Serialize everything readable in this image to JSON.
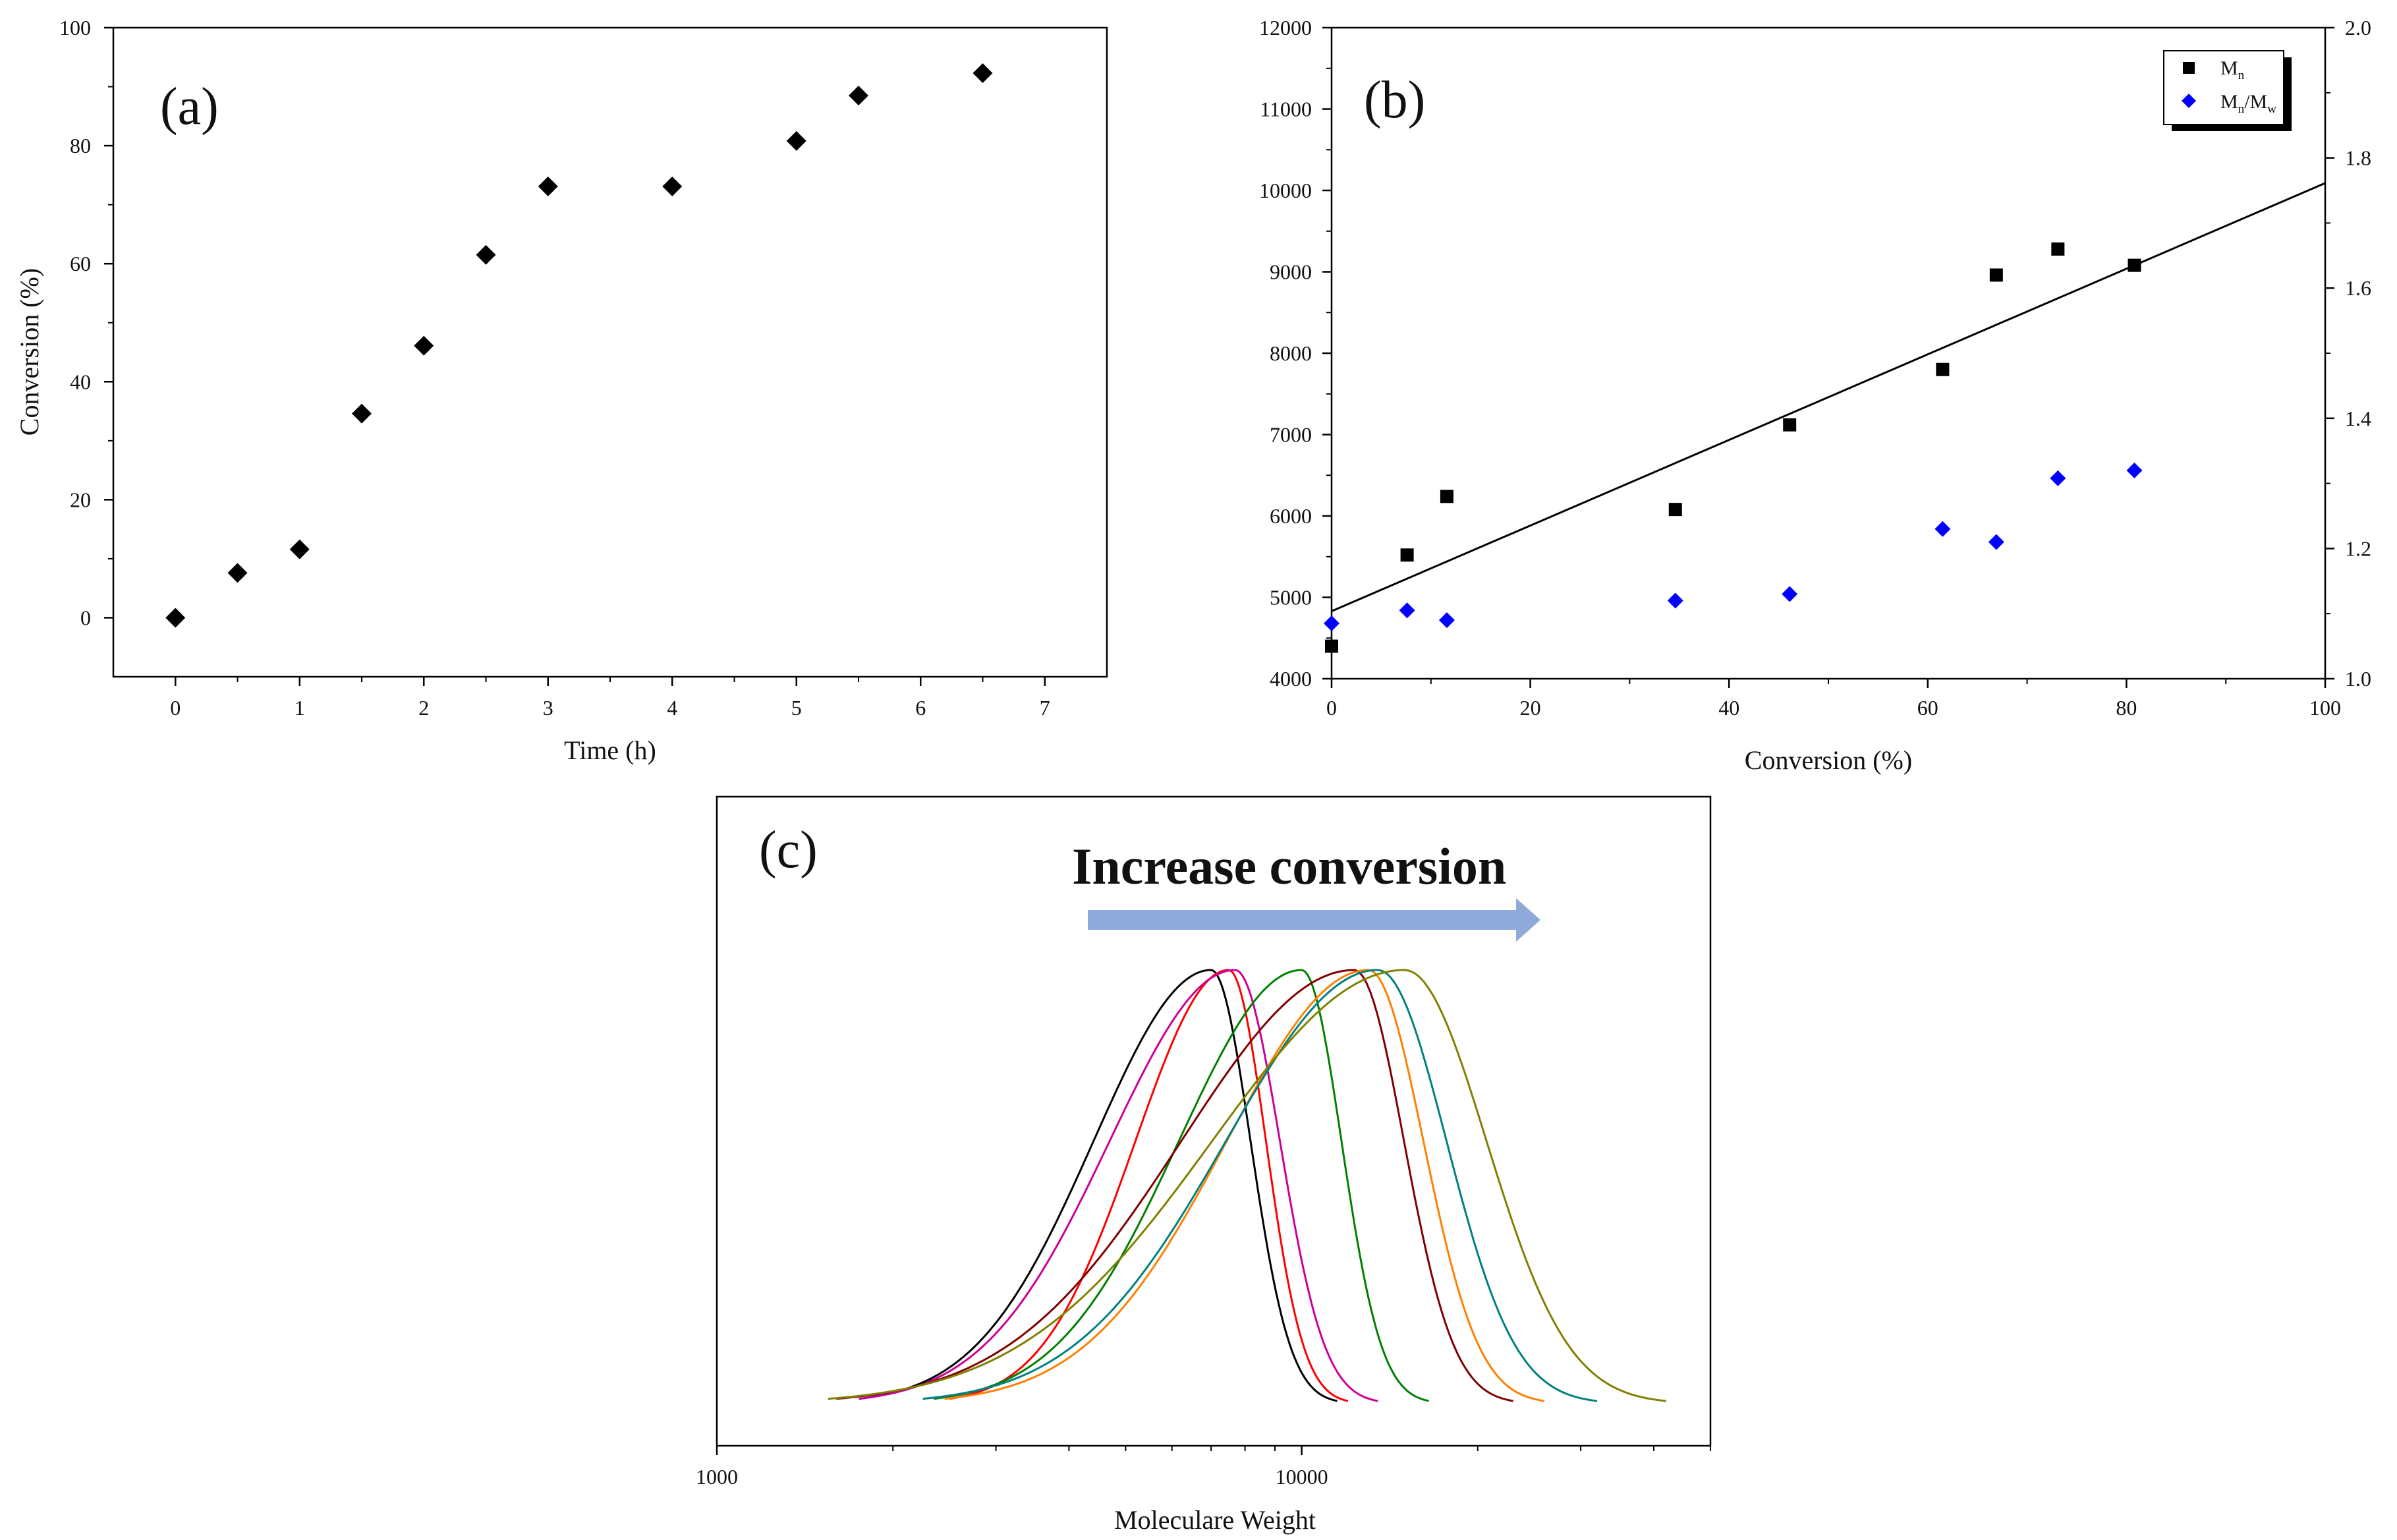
{
  "chart_data": [
    {
      "id": "a",
      "type": "scatter",
      "panel_label": "(a)",
      "xlabel": "Time (h)",
      "ylabel": "Conversion (%)",
      "xlim": [
        -0.5,
        7.5
      ],
      "ylim": [
        -10,
        100
      ],
      "xticks": [
        0,
        1,
        2,
        3,
        4,
        5,
        6,
        7
      ],
      "yticks": [
        0,
        20,
        40,
        60,
        80,
        100
      ],
      "series": [
        {
          "name": "Conversion",
          "color": "#000000",
          "x": [
            0,
            0.5,
            1,
            1.5,
            2,
            2.5,
            3,
            4,
            5,
            5.5,
            6.5
          ],
          "y": [
            0,
            7.6,
            11.6,
            34.6,
            46.1,
            61.5,
            73.1,
            73.1,
            80.8,
            88.5,
            92.3
          ]
        }
      ]
    },
    {
      "id": "b",
      "type": "scatter",
      "panel_label": "(b)",
      "xlabel": "Conversion (%)",
      "ylabel": "",
      "xlim": [
        0,
        100
      ],
      "ylim": [
        4000,
        12000
      ],
      "y2lim": [
        1.0,
        2.0
      ],
      "xticks": [
        0,
        20,
        40,
        60,
        80,
        100
      ],
      "yticks": [
        4000,
        5000,
        6000,
        7000,
        8000,
        9000,
        10000,
        11000,
        12000
      ],
      "y2ticks": [
        1.0,
        1.2,
        1.4,
        1.6,
        1.8,
        2.0
      ],
      "legend_position": "top-right",
      "series": [
        {
          "name": "Mn",
          "axis": "left",
          "marker": "square",
          "color": "#000000",
          "x": [
            0,
            7.6,
            11.6,
            34.6,
            46.1,
            61.5,
            66.9,
            73.1,
            80.8
          ],
          "y": [
            4400,
            5520,
            6240,
            6080,
            7120,
            7800,
            8960,
            9280,
            9080
          ]
        },
        {
          "name": "Mn/Mw",
          "axis": "right",
          "marker": "diamond",
          "color": "#0000ff",
          "x": [
            0,
            7.6,
            11.6,
            34.6,
            46.1,
            61.5,
            66.9,
            73.1,
            80.8
          ],
          "y": [
            1.085,
            1.105,
            1.09,
            1.12,
            1.13,
            1.23,
            1.21,
            1.308,
            1.32
          ]
        }
      ],
      "fit_line": {
        "x": [
          0,
          100
        ],
        "y": [
          4830,
          10090
        ],
        "color": "#000000"
      },
      "legend": [
        {
          "main": "M",
          "sub": "n",
          "rest": "",
          "sub2": ""
        },
        {
          "main": "M",
          "sub": "n",
          "rest": "/M",
          "sub2": "w"
        }
      ]
    },
    {
      "id": "c",
      "type": "line",
      "panel_label": "(c)",
      "xlabel": "Moleculare Weight",
      "xscale": "log",
      "xlim": [
        1000,
        50000
      ],
      "xticks": [
        1000,
        10000
      ],
      "xtick_labels": [
        "1000",
        "10000"
      ],
      "annotation": "Increase conversion",
      "annotation_color": "#70ad47",
      "arrow_color": "#8eaadb",
      "series": [
        {
          "name": "curve-1",
          "color": "#000000",
          "peak": 7000,
          "left": 1750,
          "right": 11500,
          "shoulder": 0.0
        },
        {
          "name": "curve-2",
          "color": "#ff0000",
          "peak": 7500,
          "left": 2500,
          "right": 12000,
          "shoulder": 0.0
        },
        {
          "name": "curve-3",
          "color": "#cc0099",
          "peak": 7700,
          "left": 1750,
          "right": 13500,
          "shoulder": 0.0
        },
        {
          "name": "curve-4",
          "color": "#008000",
          "peak": 10000,
          "left": 2350,
          "right": 16500,
          "shoulder": 0.62
        },
        {
          "name": "curve-5",
          "color": "#800000",
          "peak": 12300,
          "left": 1600,
          "right": 23000,
          "shoulder": 0.58
        },
        {
          "name": "curve-6",
          "color": "#ff8000",
          "peak": 13000,
          "left": 2450,
          "right": 26000,
          "shoulder": 0.48
        },
        {
          "name": "curve-7",
          "color": "#008080",
          "peak": 13500,
          "left": 2250,
          "right": 32000,
          "shoulder": 0.45
        },
        {
          "name": "curve-8",
          "color": "#808000",
          "peak": 15000,
          "left": 1550,
          "right": 42000,
          "shoulder": 0.42
        }
      ]
    }
  ]
}
